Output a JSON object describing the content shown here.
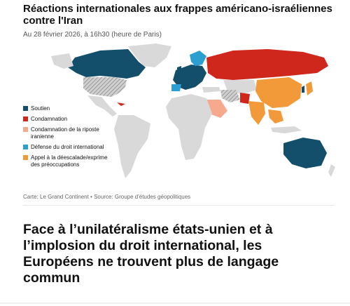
{
  "map": {
    "title": "Réactions internationales aux frappes américano-israéliennes contre l'Iran",
    "subtitle": "Au 28 février 2026, à 16h30 (heure de Paris)",
    "legend": [
      {
        "label": "Soutien",
        "color": "#134f6b"
      },
      {
        "label": "Condamnation",
        "color": "#d0271d"
      },
      {
        "label": "Condamnation de la riposte iranienne",
        "color": "#f7a98d"
      },
      {
        "label": "Défense du droit international",
        "color": "#2b9fd1"
      },
      {
        "label": "Appel à la déescalade/exprime des préoccupations",
        "color": "#f29a3a"
      }
    ],
    "source": "Carte: Le Grand Continent  •  Source: Groupe d'études géopolitiques",
    "colors": {
      "no_data": "#d9d9d9",
      "ocean": "#ffffff",
      "hatched": "#9a9a9a"
    }
  },
  "article": {
    "headline": "Face à l’unilatéralisme états-unien et à l’implosion du droit international, les Européens ne trouvent plus de langage commun"
  }
}
